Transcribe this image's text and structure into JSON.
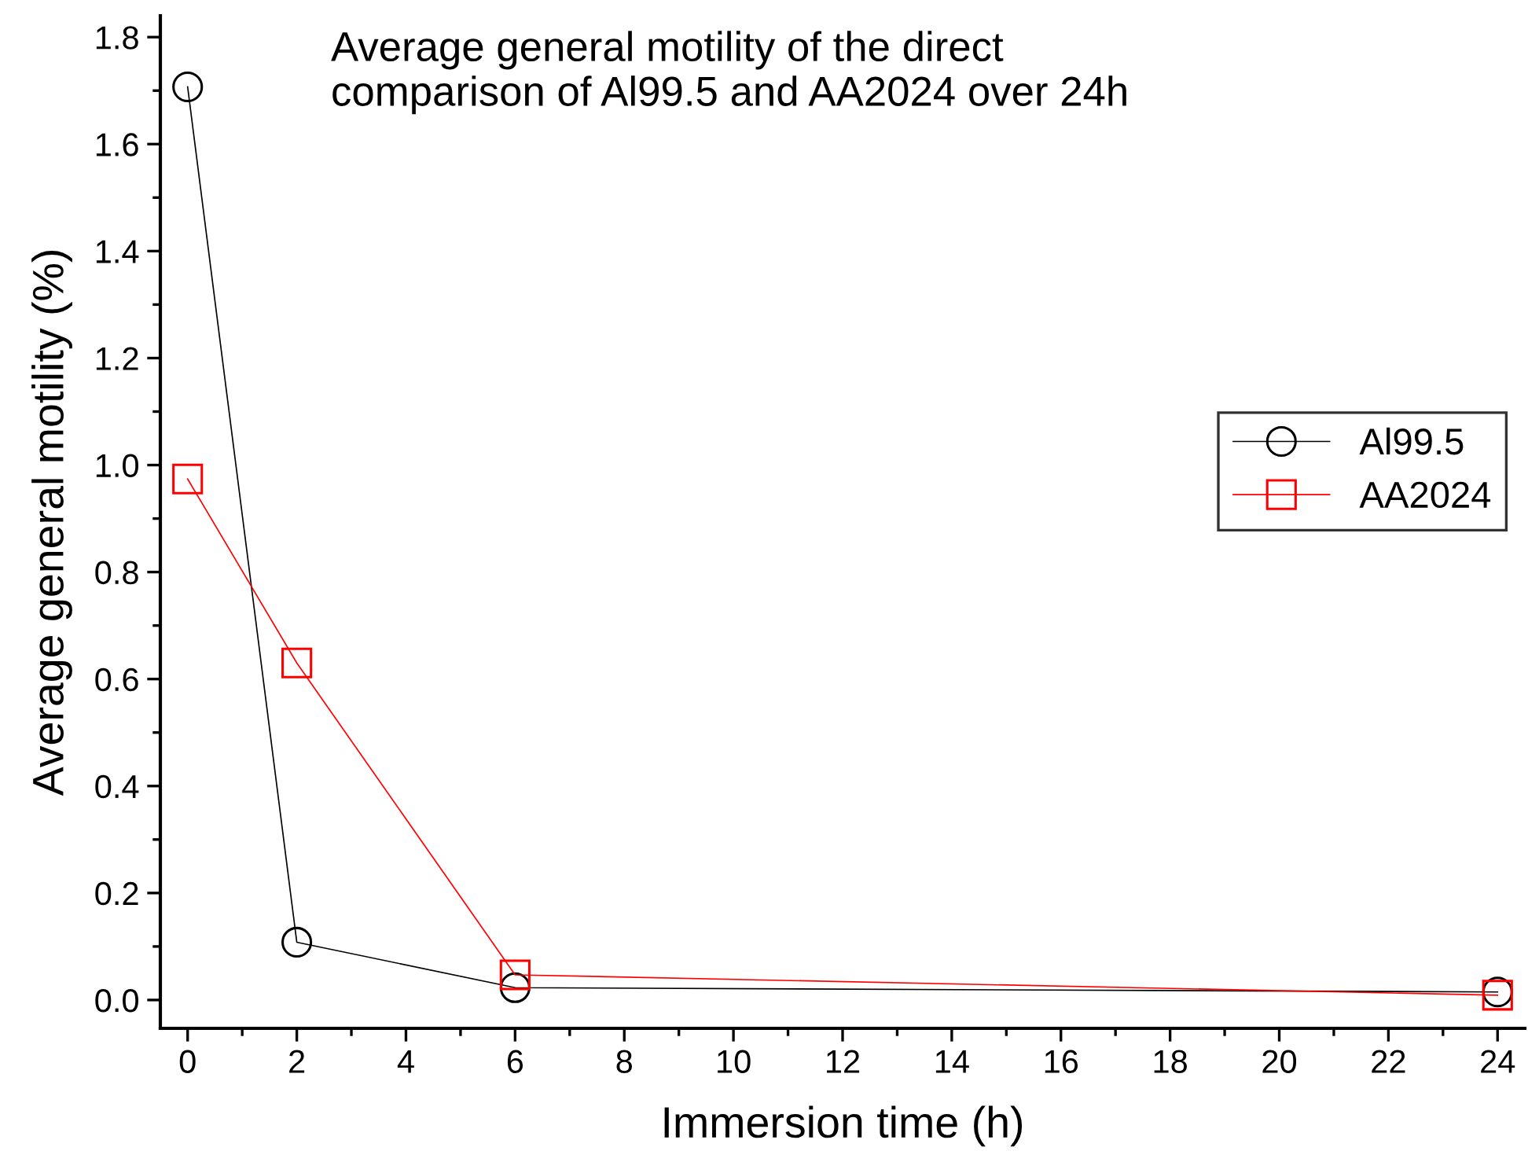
{
  "chart_data": {
    "type": "line",
    "title": "Average general motility of the direct\ncomparison of Al99.5 and AA2024 over 24h",
    "xlabel": "Immersion time (h)",
    "ylabel": "Average general motility (%)",
    "x": [
      0,
      2,
      6,
      24
    ],
    "series": [
      {
        "name": "Al99.5",
        "color": "#000000",
        "marker": "circle",
        "values": [
          1.707,
          0.108,
          0.023,
          0.015
        ]
      },
      {
        "name": "AA2024",
        "color": "#ff0000",
        "marker": "square",
        "values": [
          0.974,
          0.63,
          0.047,
          0.009
        ]
      }
    ],
    "xlim": [
      -0.5,
      24.5
    ],
    "xticks": [
      0,
      2,
      4,
      6,
      8,
      10,
      12,
      14,
      16,
      18,
      20,
      22,
      24
    ],
    "ylim": [
      -0.053,
      1.84
    ],
    "yticks": [
      {
        "value": 0,
        "label": "0.0"
      },
      0.2,
      0.4,
      0.6,
      0.8,
      {
        "value": 1,
        "label": "1.0"
      },
      1.2,
      1.4,
      1.6,
      1.8
    ],
    "grid": false,
    "legend": "right",
    "line_style": "solid"
  }
}
